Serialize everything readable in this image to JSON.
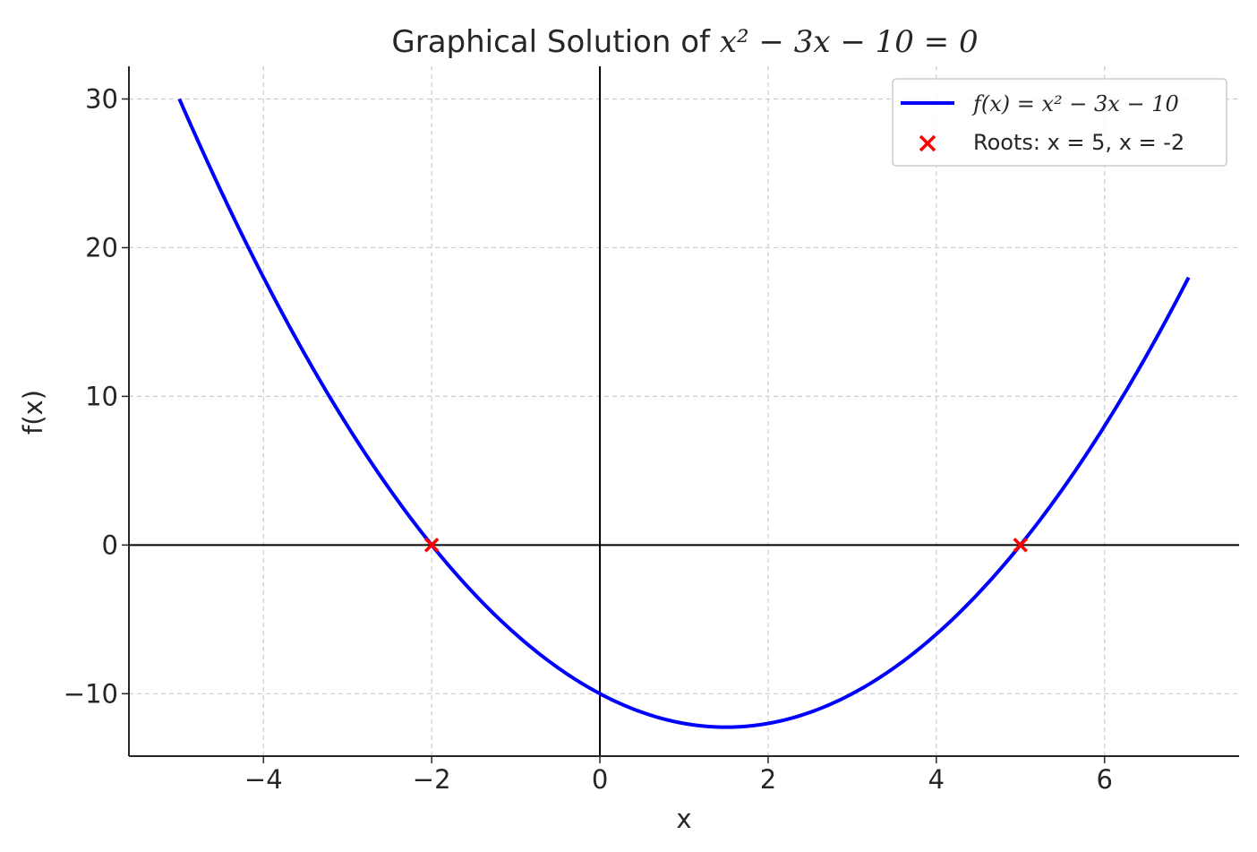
{
  "chart_data": {
    "type": "line",
    "title": {
      "prefix": "Graphical Solution of ",
      "math": "x² − 3x − 10 = 0"
    },
    "xlabel": "x",
    "ylabel": "f(x)",
    "xlim": [
      -5.6,
      7.6
    ],
    "ylim": [
      -14.2,
      32.2
    ],
    "x_ticks": [
      -4,
      -2,
      0,
      2,
      4,
      6
    ],
    "x_tick_labels": [
      "−4",
      "−2",
      "0",
      "2",
      "4",
      "6"
    ],
    "y_ticks": [
      -10,
      0,
      10,
      20,
      30
    ],
    "y_tick_labels": [
      "−10",
      "0",
      "10",
      "20",
      "30"
    ],
    "grid": true,
    "legend_position": "top-right",
    "series": [
      {
        "name": "f(x) = x² − 3x − 10",
        "kind": "line",
        "color": "#0000ff",
        "function": {
          "a": 1,
          "b": -3,
          "c": -10
        },
        "x_range": [
          -5,
          7
        ],
        "points": [
          {
            "x": -5,
            "y": 30
          },
          {
            "x": -4,
            "y": 18
          },
          {
            "x": -3,
            "y": 8
          },
          {
            "x": -2,
            "y": 0
          },
          {
            "x": -1,
            "y": -6
          },
          {
            "x": 0,
            "y": -10
          },
          {
            "x": 1,
            "y": -12
          },
          {
            "x": 1.5,
            "y": -12.25
          },
          {
            "x": 2,
            "y": -12
          },
          {
            "x": 3,
            "y": -10
          },
          {
            "x": 4,
            "y": -6
          },
          {
            "x": 5,
            "y": 0
          },
          {
            "x": 6,
            "y": 8
          },
          {
            "x": 7,
            "y": 18
          }
        ]
      },
      {
        "name": "Roots: x = 5, x = -2",
        "kind": "scatter",
        "marker": "x",
        "color": "#ff0000",
        "points": [
          {
            "x": 5,
            "y": 0
          },
          {
            "x": -2,
            "y": 0
          }
        ]
      }
    ]
  }
}
